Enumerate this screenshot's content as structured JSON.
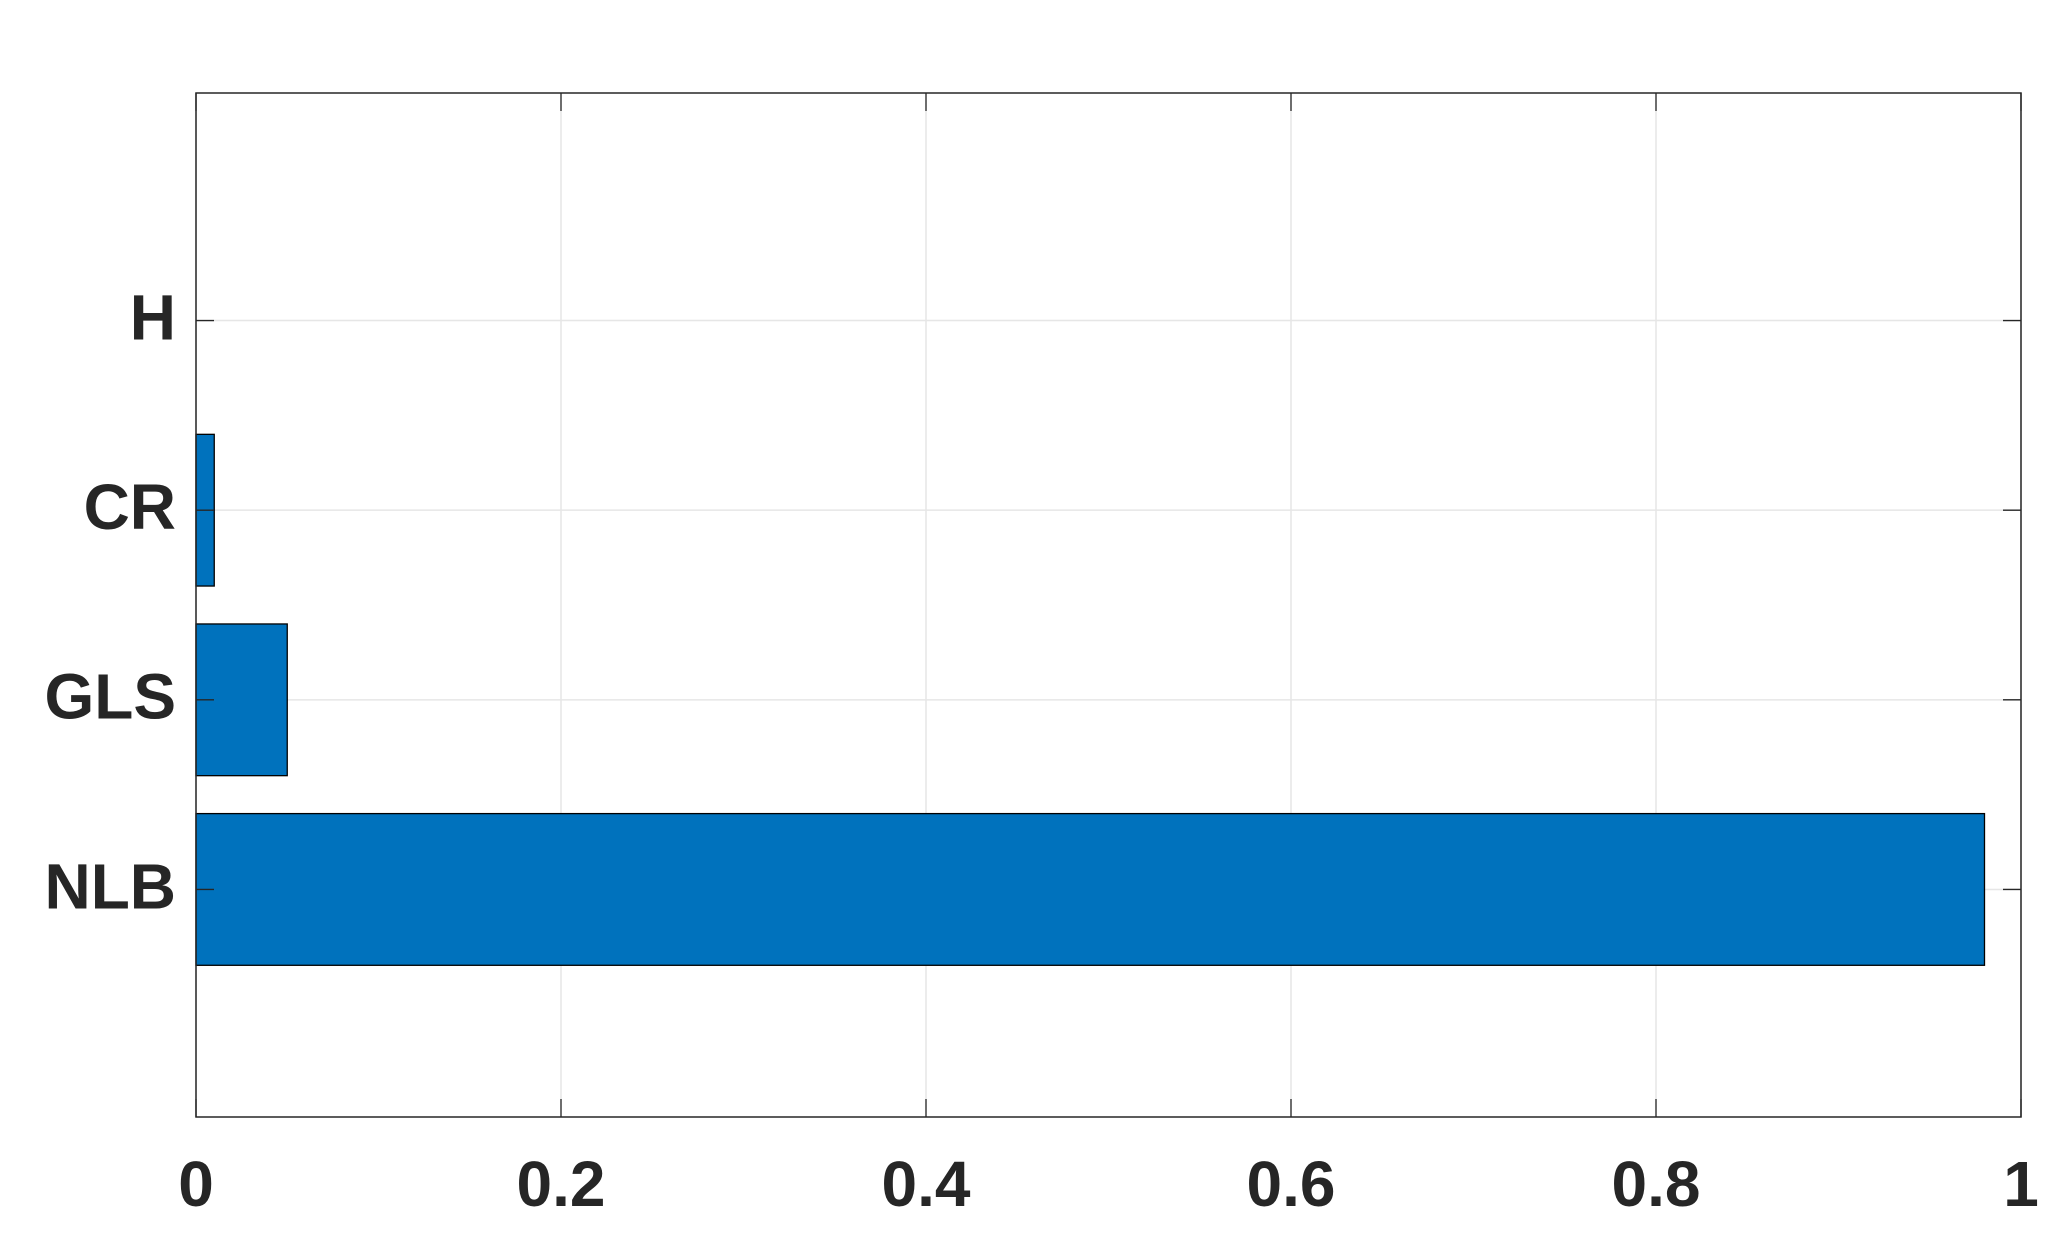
{
  "chart_data": {
    "type": "barh",
    "categories": [
      "NLB",
      "GLS",
      "CR",
      "H"
    ],
    "values": [
      0.98,
      0.05,
      0.01,
      0
    ],
    "color": "#0072bd",
    "xlim": [
      0,
      1
    ],
    "xticks": [
      0,
      0.2,
      0.4,
      0.6,
      0.8,
      1
    ],
    "grid": true
  }
}
